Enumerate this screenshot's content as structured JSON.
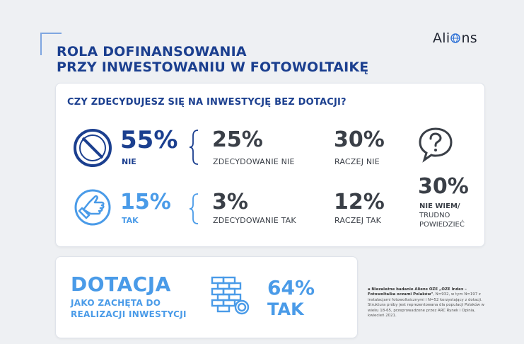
{
  "header": {
    "title_line1": "ROLA DOFINANSOWANIA",
    "title_line2": "PRZY INWESTOWANIU W FOTOWOLTAIKĘ",
    "logo_a": "Ali",
    "logo_b": "ns"
  },
  "survey": {
    "question": "CZY ZDECYDUJESZ SIĘ NA INWESTYCJĘ BEZ DOTACJI?",
    "no_total": {
      "value": "55%",
      "label": "NIE"
    },
    "no_definitely": {
      "value": "25%",
      "label": "ZDECYDOWANIE NIE"
    },
    "no_rather": {
      "value": "30%",
      "label": "RACZEJ NIE"
    },
    "yes_total": {
      "value": "15%",
      "label": "TAK"
    },
    "yes_definitely": {
      "value": "3%",
      "label": "ZDECYDOWANIE TAK"
    },
    "yes_rather": {
      "value": "12%",
      "label": "RACZEJ TAK"
    },
    "dont_know": {
      "value": "30%",
      "label_line1": "NIE WIEM/",
      "label_line2": "TRUDNO",
      "label_line3": "POWIEDZIEĆ"
    }
  },
  "subsidy": {
    "title": "DOTACJA",
    "sub_line1": "JAKO ZACHĘTA DO",
    "sub_line2": "REALIZACJI INWESTYCJI",
    "value": "64%",
    "value_label": "TAK"
  },
  "footnote": {
    "bold_part": "Niezależne badanie Aliens OZE „OZE Index – Fotowoltaika oczami Polaków\"",
    "rest": ", N=932, w tym N=197 z instalacjami fotowoltaicznymi i N=52 korzystający z dotacji. Struktura próby jest reprezentowana dla populacji Polaków w wieku 18-65, przeprowadzone przez ARC Rynek i Opinia, kwiecień 2021."
  },
  "colors": {
    "dark_blue": "#1b3f8f",
    "light_blue": "#4a9be8",
    "gray_text": "#3a3f47"
  },
  "icons": [
    "prohibited-icon",
    "thumbs-up-icon",
    "question-bubble-icon",
    "coin-stack-icon",
    "globe-icon"
  ]
}
